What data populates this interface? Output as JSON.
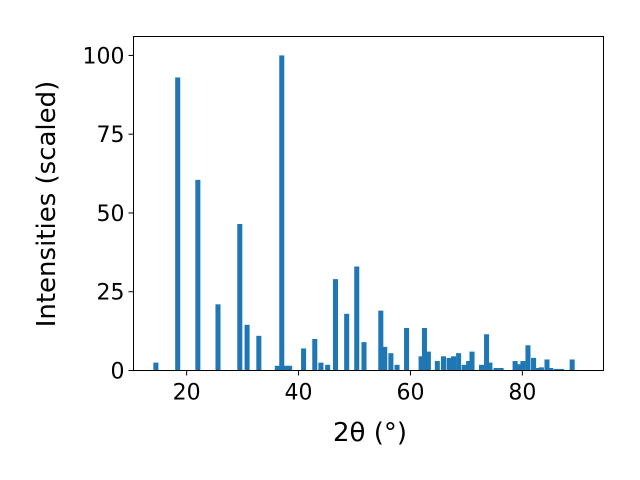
{
  "chart_data": {
    "type": "bar",
    "title": "",
    "xlabel": "2θ (°)",
    "ylabel": "Intensities (scaled)",
    "xlim": [
      10.5,
      94.5
    ],
    "ylim": [
      0,
      106
    ],
    "x_ticks": [
      20,
      40,
      60,
      80
    ],
    "y_ticks": [
      0,
      25,
      50,
      75,
      100
    ],
    "grid": false,
    "bar_width": 0.9,
    "bar_color": "#1f77b4",
    "x": [
      14.5,
      18.4,
      22.0,
      25.6,
      29.5,
      30.8,
      32.9,
      36.2,
      37.0,
      37.8,
      38.4,
      40.9,
      42.9,
      44.0,
      45.2,
      46.6,
      48.6,
      50.4,
      51.7,
      54.7,
      55.4,
      56.5,
      57.6,
      59.3,
      61.9,
      62.5,
      63.2,
      64.8,
      65.9,
      66.9,
      67.7,
      68.6,
      69.6,
      70.4,
      71.0,
      72.7,
      73.6,
      74.2,
      75.3,
      76.2,
      78.7,
      79.3,
      80.1,
      81.0,
      82.0,
      82.7,
      83.4,
      84.4,
      85.1,
      86.1,
      87.0,
      88.9
    ],
    "values": [
      2.5,
      93.0,
      60.5,
      21.0,
      46.5,
      14.5,
      11.0,
      1.5,
      100.0,
      1.5,
      1.5,
      7.0,
      10.0,
      2.5,
      1.8,
      29.0,
      18.0,
      33.0,
      9.0,
      19.0,
      7.5,
      5.5,
      1.8,
      13.5,
      4.5,
      13.5,
      6.0,
      3.0,
      4.5,
      4.0,
      4.5,
      5.5,
      1.8,
      3.0,
      6.0,
      1.8,
      11.5,
      2.5,
      0.8,
      0.8,
      3.0,
      2.0,
      3.0,
      8.0,
      4.0,
      0.8,
      1.0,
      3.5,
      0.8,
      0.5,
      0.5,
      3.5
    ]
  }
}
